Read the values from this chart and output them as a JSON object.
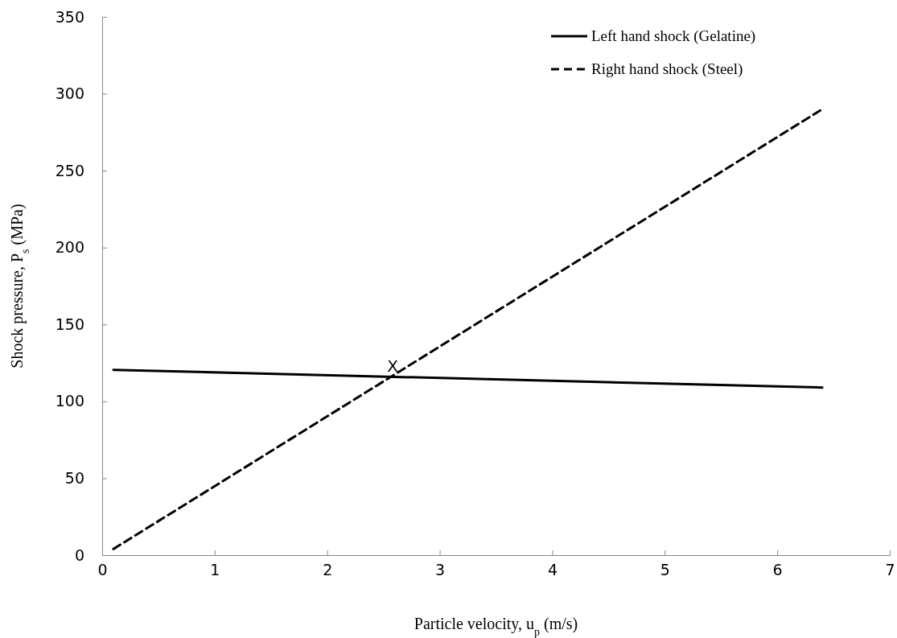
{
  "chart_data": {
    "type": "line",
    "xlabel": "Particle velocity, u$_{p}$ (m/s)",
    "ylabel": "Shock pressure, P$_{s}$ (MPa)",
    "xlim": [
      0,
      7
    ],
    "xticks": [
      0,
      1,
      2,
      3,
      4,
      5,
      6,
      7
    ],
    "ylim": [
      0,
      350
    ],
    "yticks": [
      0,
      50,
      100,
      150,
      200,
      250,
      300,
      350
    ],
    "grid": false,
    "legend": "top right",
    "x": [
      0.1,
      6.4
    ],
    "series": [
      {
        "name": "Left hand shock (Gelatine)",
        "color": "#000000",
        "line_style": "solid",
        "values": [
          120.5,
          109
        ]
      },
      {
        "name": "Right hand shock (Steel)",
        "color": "#000000",
        "line_style": "dashed",
        "values": [
          4,
          290
        ]
      }
    ],
    "annotations": [
      {
        "text": "X",
        "x": 2.56,
        "y": 116
      }
    ]
  }
}
